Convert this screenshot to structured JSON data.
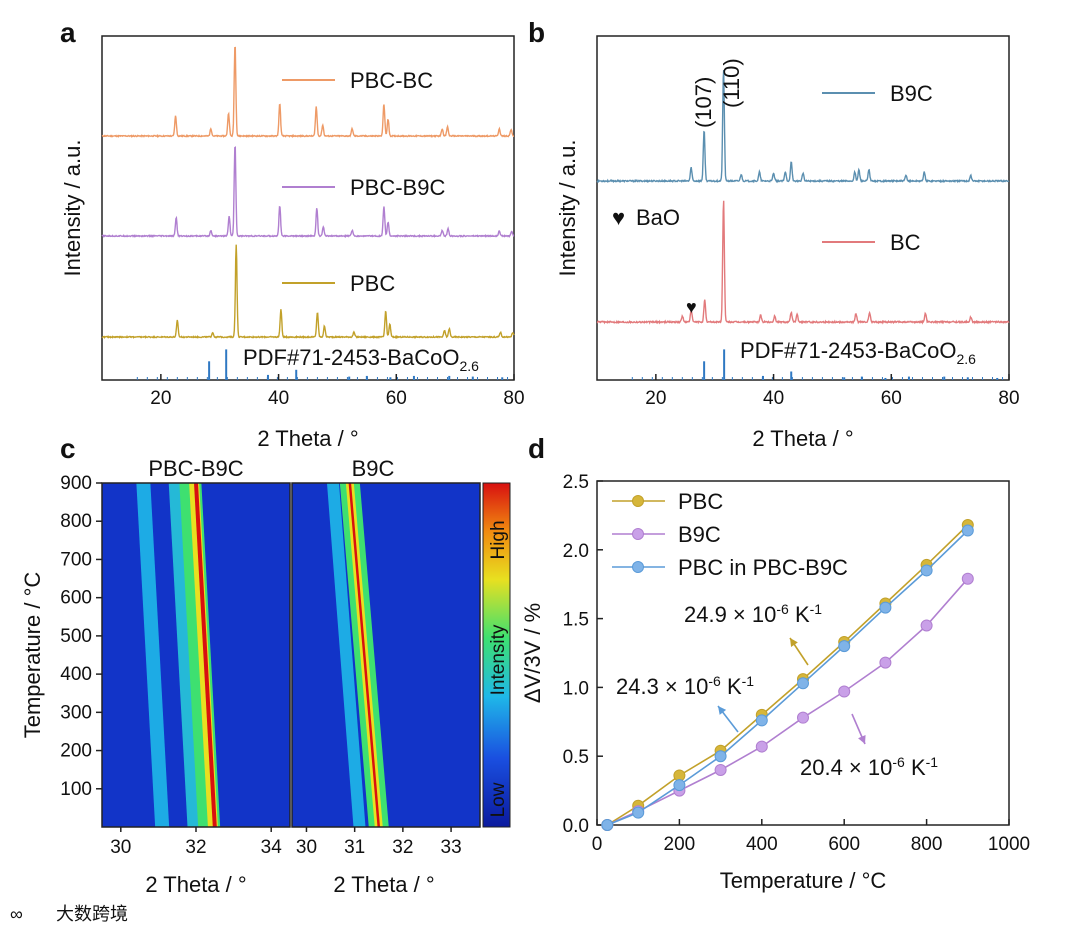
{
  "panels": {
    "a": "a",
    "b": "b",
    "c": "c",
    "d": "d"
  },
  "colors": {
    "PBC": "#c2a12a",
    "PBC-BC": "#ee9a66",
    "PBC-B9C": "#b07fd0",
    "B9C": "#5b8fb0",
    "BC": "#e27a7c",
    "PDF": "#2f78c2",
    "PBC_in": "#5b9bd8"
  },
  "chart_data": [
    {
      "panel": "a",
      "type": "line",
      "xlabel": "2 Theta / °",
      "ylabel": "Intensity / a.u.",
      "xlim": [
        10,
        80
      ],
      "xticks": [
        20,
        40,
        60,
        80
      ],
      "series": [
        {
          "name": "PBC-BC",
          "peaks": [
            [
              22.5,
              0.22
            ],
            [
              28.5,
              0.08
            ],
            [
              31.5,
              0.25
            ],
            [
              32.6,
              1.0
            ],
            [
              40.2,
              0.35
            ],
            [
              46.4,
              0.32
            ],
            [
              47.5,
              0.12
            ],
            [
              52.5,
              0.08
            ],
            [
              57.9,
              0.35
            ],
            [
              58.6,
              0.18
            ],
            [
              67.8,
              0.08
            ],
            [
              68.7,
              0.1
            ],
            [
              77.5,
              0.08
            ],
            [
              79.5,
              0.07
            ]
          ]
        },
        {
          "name": "PBC-B9C",
          "peaks": [
            [
              22.6,
              0.2
            ],
            [
              28.5,
              0.06
            ],
            [
              31.6,
              0.22
            ],
            [
              32.6,
              1.0
            ],
            [
              40.2,
              0.33
            ],
            [
              46.5,
              0.3
            ],
            [
              47.6,
              0.1
            ],
            [
              52.5,
              0.06
            ],
            [
              57.9,
              0.32
            ],
            [
              58.6,
              0.15
            ],
            [
              67.8,
              0.06
            ],
            [
              68.8,
              0.08
            ],
            [
              77.5,
              0.06
            ],
            [
              79.6,
              0.05
            ]
          ]
        },
        {
          "name": "PBC",
          "peaks": [
            [
              22.8,
              0.18
            ],
            [
              28.8,
              0.05
            ],
            [
              32.8,
              1.0
            ],
            [
              40.4,
              0.3
            ],
            [
              46.6,
              0.27
            ],
            [
              47.8,
              0.12
            ],
            [
              52.8,
              0.05
            ],
            [
              58.2,
              0.28
            ],
            [
              58.9,
              0.14
            ],
            [
              68.2,
              0.07
            ],
            [
              69.0,
              0.09
            ],
            [
              77.7,
              0.05
            ],
            [
              79.8,
              0.05
            ]
          ]
        }
      ],
      "reference": {
        "name": "PDF#71-2453-BaCoO",
        "subscript": "2.6",
        "lines": [
          [
            28.2,
            0.55
          ],
          [
            31.1,
            0.9
          ],
          [
            38.2,
            0.15
          ],
          [
            43.0,
            0.3
          ],
          [
            52.0,
            0.1
          ],
          [
            55.0,
            0.12
          ],
          [
            59.0,
            0.08
          ],
          [
            63.0,
            0.12
          ],
          [
            69.0,
            0.12
          ],
          [
            73.0,
            0.1
          ],
          [
            78.0,
            0.08
          ]
        ]
      }
    },
    {
      "panel": "b",
      "type": "line",
      "xlabel": "2 Theta / °",
      "ylabel": "Intensity / a.u.",
      "xlim": [
        10,
        80
      ],
      "xticks": [
        20,
        40,
        60,
        80
      ],
      "annotations": [
        "(107)",
        "(110)"
      ],
      "series": [
        {
          "name": "B9C",
          "peaks": [
            [
              26.0,
              0.12
            ],
            [
              28.2,
              0.45
            ],
            [
              31.5,
              1.0
            ],
            [
              34.5,
              0.06
            ],
            [
              37.6,
              0.08
            ],
            [
              40.0,
              0.07
            ],
            [
              42.0,
              0.08
            ],
            [
              43.0,
              0.17
            ],
            [
              45.0,
              0.07
            ],
            [
              53.8,
              0.08
            ],
            [
              54.5,
              0.1
            ],
            [
              56.2,
              0.1
            ],
            [
              62.5,
              0.05
            ],
            [
              65.6,
              0.08
            ],
            [
              73.5,
              0.05
            ]
          ]
        },
        {
          "name": "BC",
          "peaks": [
            [
              24.5,
              0.05
            ],
            [
              26.0,
              0.1
            ],
            [
              28.3,
              0.18
            ],
            [
              31.5,
              1.0
            ],
            [
              37.8,
              0.06
            ],
            [
              40.2,
              0.05
            ],
            [
              43.0,
              0.08
            ],
            [
              44.0,
              0.06
            ],
            [
              54.0,
              0.07
            ],
            [
              56.3,
              0.08
            ],
            [
              65.8,
              0.07
            ],
            [
              73.5,
              0.04
            ]
          ]
        }
      ],
      "marker_label": "BaO",
      "reference": {
        "name": "PDF#71-2453-BaCoO",
        "subscript": "2.6",
        "lines": [
          [
            28.2,
            0.55
          ],
          [
            31.6,
            0.9
          ],
          [
            38.2,
            0.12
          ],
          [
            43.0,
            0.25
          ],
          [
            52.0,
            0.08
          ],
          [
            55.0,
            0.1
          ],
          [
            59.0,
            0.06
          ],
          [
            63.0,
            0.1
          ],
          [
            69.0,
            0.1
          ],
          [
            73.0,
            0.08
          ],
          [
            78.0,
            0.06
          ]
        ]
      }
    },
    {
      "panel": "c",
      "type": "heatmap",
      "ylabel": "Temperature / °C",
      "ylim": [
        0,
        900
      ],
      "yticks": [
        100,
        200,
        300,
        400,
        500,
        600,
        700,
        800,
        900
      ],
      "colorbar": {
        "label": "Intensity",
        "high": "High",
        "low": "Low"
      },
      "maps": [
        {
          "title": "PBC-B9C",
          "xlabel": "2 Theta / °",
          "xlim": [
            29.5,
            34.5
          ],
          "xticks": [
            30,
            32,
            34
          ],
          "main_peak_at_0": 32.5,
          "main_peak_at_900": 32.0,
          "side_peak_at_0": 31.1,
          "side_peak_at_900": 30.6
        },
        {
          "title": "B9C",
          "xlabel": "2 Theta / °",
          "xlim": [
            29.7,
            33.6
          ],
          "xticks": [
            30,
            31,
            32,
            33
          ],
          "main_peak_at_0": 31.5,
          "main_peak_at_900": 30.9,
          "side_peak_at_0": 31.1,
          "side_peak_at_900": 30.55
        }
      ]
    },
    {
      "panel": "d",
      "type": "line",
      "xlabel": "Temperature / °C",
      "ylabel": "ΔV/3V / %",
      "xlim": [
        0,
        1000
      ],
      "ylim": [
        0,
        2.5
      ],
      "xticks": [
        0,
        200,
        400,
        600,
        800,
        1000
      ],
      "yticks": [
        0.0,
        0.5,
        1.0,
        1.5,
        2.0,
        2.5
      ],
      "x": [
        25,
        100,
        200,
        300,
        400,
        500,
        600,
        700,
        800,
        900
      ],
      "series": [
        {
          "name": "PBC",
          "values": [
            0.0,
            0.14,
            0.36,
            0.54,
            0.8,
            1.06,
            1.33,
            1.61,
            1.89,
            2.18
          ]
        },
        {
          "name": "B9C",
          "values": [
            0.0,
            0.1,
            0.25,
            0.4,
            0.57,
            0.78,
            0.97,
            1.18,
            1.45,
            1.79
          ]
        },
        {
          "name": "PBC in PBC-B9C",
          "values": [
            0.0,
            0.09,
            0.29,
            0.5,
            0.76,
            1.03,
            1.3,
            1.58,
            1.85,
            2.14
          ]
        }
      ],
      "annotations": [
        {
          "text": "24.9 × 10",
          "sup": "-6",
          "unit": " K",
          "unitsup": "-1",
          "series": "PBC"
        },
        {
          "text": "24.3 × 10",
          "sup": "-6",
          "unit": " K",
          "unitsup": "-1",
          "series": "PBC in PBC-B9C"
        },
        {
          "text": "20.4 × 10",
          "sup": "-6",
          "unit": " K",
          "unitsup": "-1",
          "series": "B9C"
        }
      ]
    }
  ],
  "watermark": "大数跨境"
}
